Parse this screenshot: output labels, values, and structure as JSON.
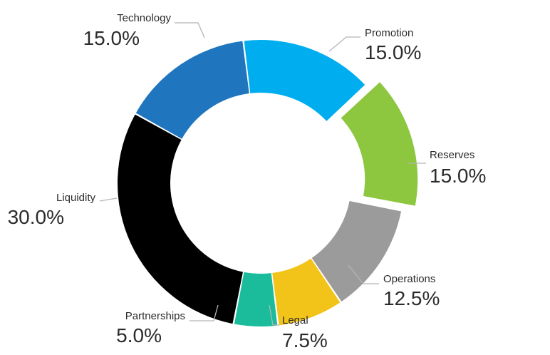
{
  "chart_data": {
    "type": "pie",
    "variant": "donut",
    "title": "",
    "categories": [
      "Promotion",
      "Reserves",
      "Operations",
      "Legal",
      "Partnerships",
      "Liquidity",
      "Technology"
    ],
    "values": [
      15.0,
      15.0,
      12.5,
      7.5,
      5.0,
      30.0,
      15.0
    ],
    "value_labels": [
      "15.0%",
      "15.0%",
      "12.5%",
      "7.5%",
      "5.0%",
      "30.0%",
      "15.0%"
    ],
    "colors": [
      "#00aeef",
      "#8dc63f",
      "#9b9b9b",
      "#f2c318",
      "#1abc9c",
      "#000000",
      "#1f75be"
    ],
    "exploded": [
      "Reserves"
    ],
    "legend": "none",
    "grid": false
  }
}
